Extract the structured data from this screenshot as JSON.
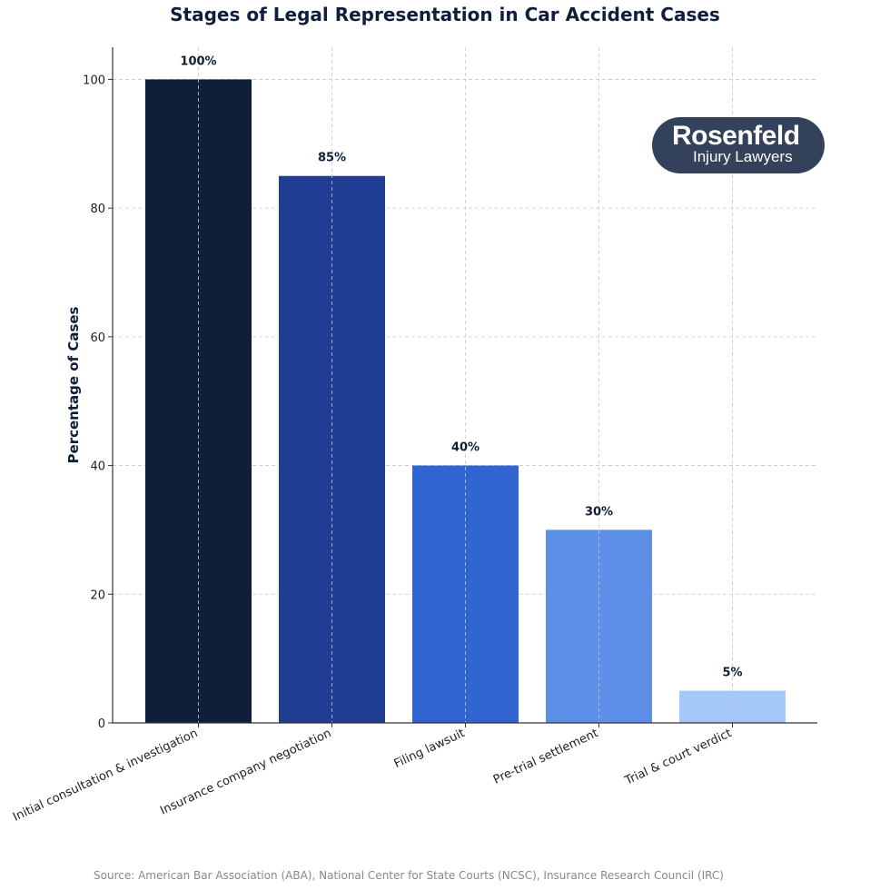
{
  "chart_data": {
    "type": "bar",
    "title": "Stages of Legal Representation in Car Accident Cases",
    "ylabel": "Percentage of Cases",
    "xlabel": "",
    "ylim": [
      0,
      105
    ],
    "yticks": [
      0,
      20,
      40,
      60,
      80,
      100
    ],
    "grid": true,
    "categories": [
      "Initial consultation & investigation",
      "Insurance company negotiation",
      "Filing lawsuit",
      "Pre-trial settlement",
      "Trial & court verdict"
    ],
    "values": [
      100,
      85,
      40,
      30,
      5
    ],
    "data_labels": [
      "100%",
      "85%",
      "40%",
      "30%",
      "5%"
    ],
    "colors": [
      "#0f1f3a",
      "#1e3d93",
      "#2f64d1",
      "#5d8fe9",
      "#a5c8fb"
    ]
  },
  "logo": {
    "line1": "Rosenfeld",
    "line2": "Injury Lawyers"
  },
  "source": "Source: American Bar Association (ABA), National Center for State Courts (NCSC), Insurance Research Council (IRC)"
}
